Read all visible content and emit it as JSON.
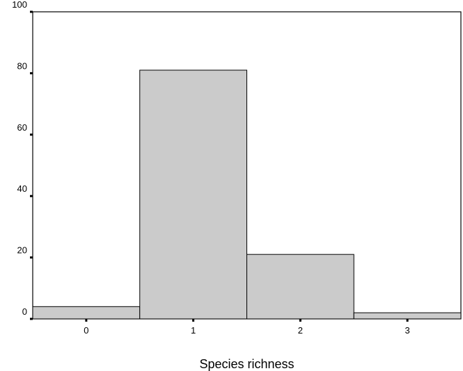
{
  "chart_data": {
    "type": "bar",
    "categories": [
      "0",
      "1",
      "2",
      "3"
    ],
    "values": [
      4,
      81,
      21,
      2
    ],
    "title": "",
    "xlabel": "Species richness",
    "ylabel": "",
    "ylim": [
      0,
      100
    ],
    "yticks": [
      "0",
      "20",
      "40",
      "60",
      "80",
      "100"
    ],
    "grid": false,
    "colors": {
      "bar_fill": "#cbcbcb",
      "bar_stroke": "#000000",
      "axis": "#000000"
    }
  }
}
